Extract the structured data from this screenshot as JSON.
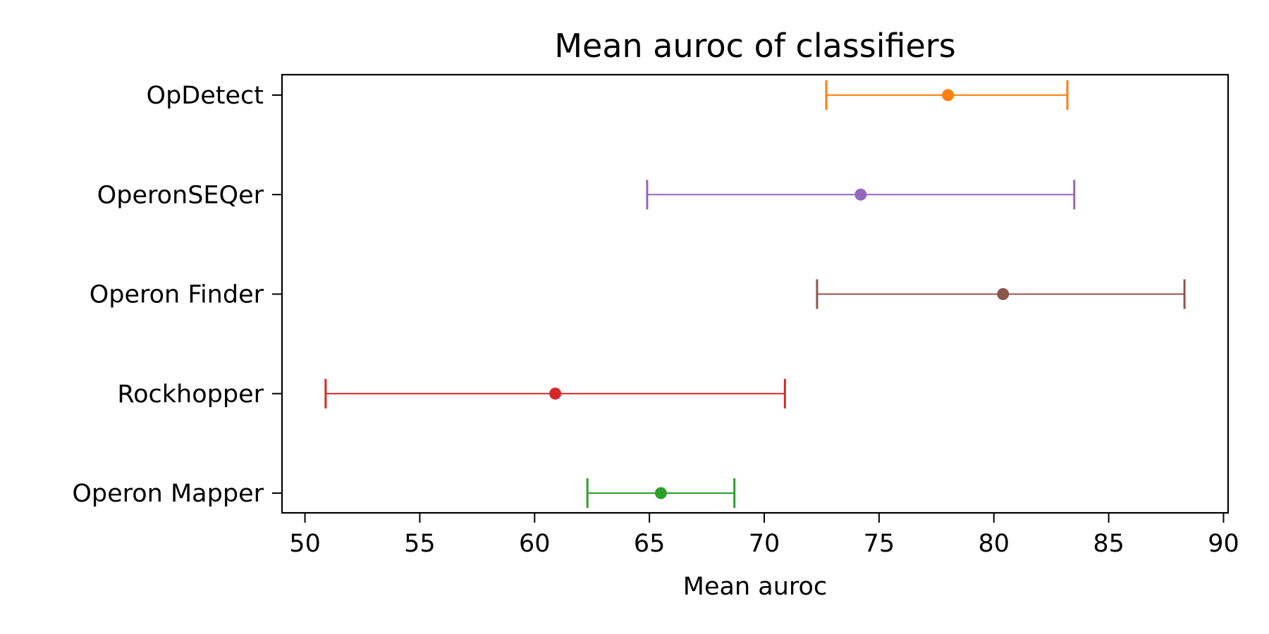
{
  "chart_data": {
    "type": "errorbar",
    "orientation": "horizontal",
    "title": "Mean auroc of classifiers",
    "xlabel": "Mean auroc",
    "ylabel": "",
    "xlim": [
      49,
      90.2
    ],
    "xticks": [
      50,
      55,
      60,
      65,
      70,
      75,
      80,
      85,
      90
    ],
    "grid": false,
    "categories": [
      "OpDetect",
      "OperonSEQer",
      "Operon Finder",
      "Rockhopper",
      "Operon Mapper"
    ],
    "series": [
      {
        "category": "OpDetect",
        "mean": 78.0,
        "low": 72.7,
        "high": 83.2,
        "color": "#ff7f0e"
      },
      {
        "category": "OperonSEQer",
        "mean": 74.2,
        "low": 64.9,
        "high": 83.5,
        "color": "#9467bd"
      },
      {
        "category": "Operon Finder",
        "mean": 80.4,
        "low": 72.3,
        "high": 88.3,
        "color": "#8c564b"
      },
      {
        "category": "Rockhopper",
        "mean": 60.9,
        "low": 50.9,
        "high": 70.9,
        "color": "#d62728"
      },
      {
        "category": "Operon Mapper",
        "mean": 65.5,
        "low": 62.3,
        "high": 68.7,
        "color": "#2ca02c"
      }
    ]
  }
}
